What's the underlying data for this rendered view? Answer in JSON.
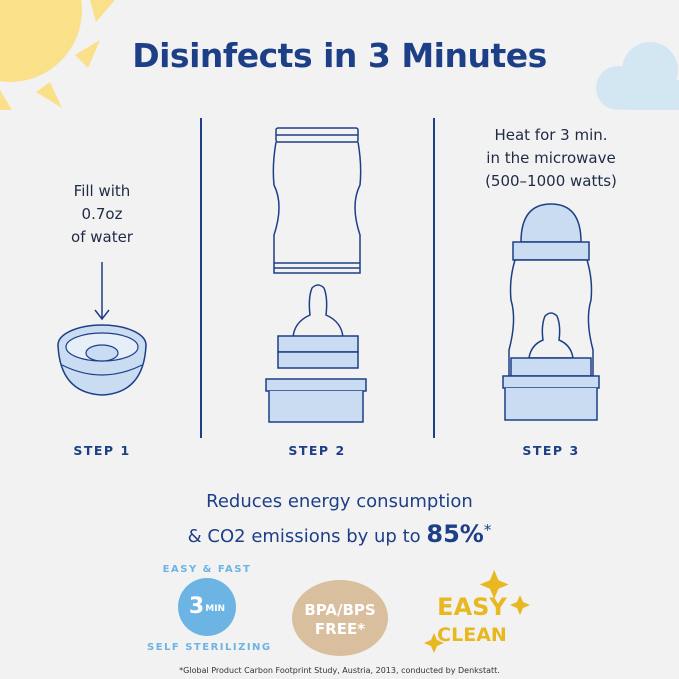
{
  "title": "Disinfects in 3 Minutes",
  "steps": [
    {
      "label": "STEP 1",
      "caption_lines": [
        "Fill with",
        "0.7oz",
        "of water"
      ]
    },
    {
      "label": "STEP 2"
    },
    {
      "label": "STEP 3",
      "caption_lines": [
        "Heat for 3 min.",
        "in the microwave",
        "(500–1000 watts)"
      ]
    }
  ],
  "energy": {
    "line1": "Reduces energy consumption",
    "line2": "& CO2 emissions by up to",
    "value": "85%",
    "mark": "*"
  },
  "badges": {
    "sterilizing": {
      "top": "EASY & FAST",
      "bottom": "SELF STERILIZING",
      "number": "3",
      "unit": "MIN"
    },
    "bpa": {
      "line1": "BPA/BPS",
      "line2": "FREE*"
    },
    "clean": {
      "line1": "EASY",
      "line2": "CLEAN"
    }
  },
  "footnote": "*Global Product Carbon Footprint Study, Austria, 2013, conducted by Denkstatt.",
  "colors": {
    "navy": "#1d3f87",
    "light_blue": "#c9dcf2",
    "sun": "#fbe08a",
    "cloud": "#d3e7f3",
    "tan": "#d9bf9d",
    "yellow": "#e8b820",
    "badge_blue": "#6cb4e4"
  }
}
